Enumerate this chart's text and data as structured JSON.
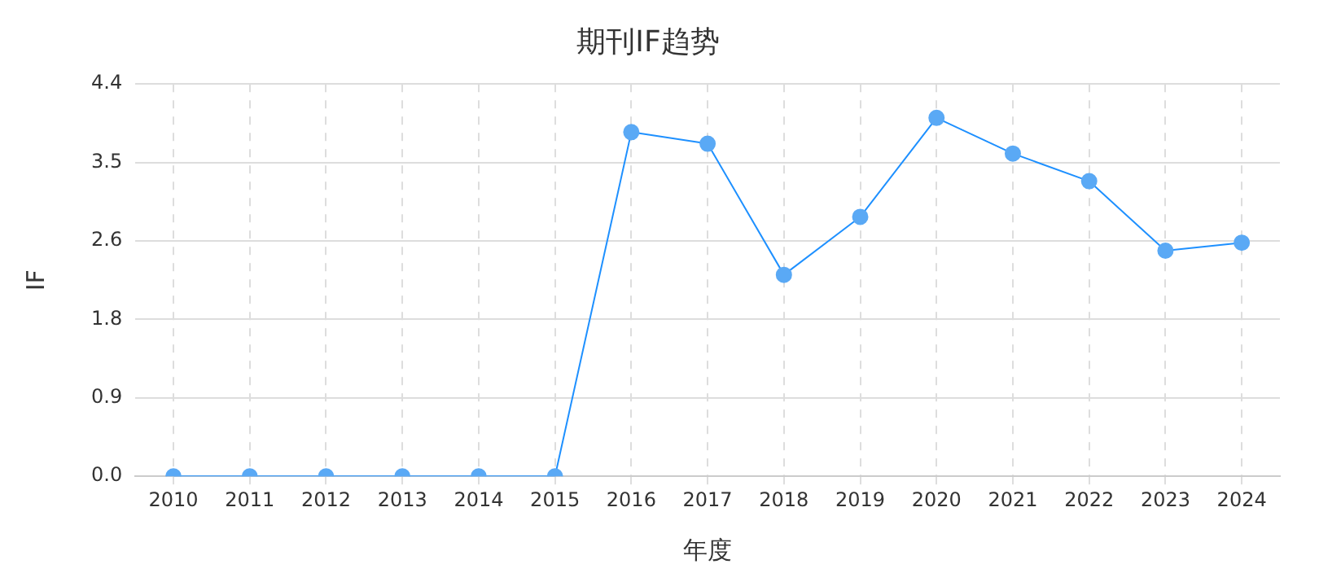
{
  "chart_data": {
    "type": "line",
    "title": "期刊IF趋势",
    "xlabel": "年度",
    "ylabel": "IF",
    "categories": [
      "2010",
      "2011",
      "2012",
      "2013",
      "2014",
      "2015",
      "2016",
      "2017",
      "2018",
      "2019",
      "2020",
      "2021",
      "2022",
      "2023",
      "2024"
    ],
    "series": [
      {
        "color": "#1e90ff",
        "values": [
          0,
          0,
          0,
          0,
          0,
          0,
          3.86,
          3.73,
          2.26,
          2.91,
          4.02,
          3.62,
          3.31,
          2.53,
          2.62
        ]
      }
    ],
    "ylim": [
      0,
      4.4
    ],
    "yticks": [
      {
        "value": 0,
        "label": "0.0"
      },
      {
        "value": 0.88,
        "label": "0.9"
      },
      {
        "value": 1.76,
        "label": "1.8"
      },
      {
        "value": 2.64,
        "label": "2.6"
      },
      {
        "value": 3.52,
        "label": "3.5"
      },
      {
        "value": 4.4,
        "label": "4.4"
      }
    ],
    "grid": true,
    "legend": false,
    "marker": "circle",
    "line_style": "solid"
  }
}
